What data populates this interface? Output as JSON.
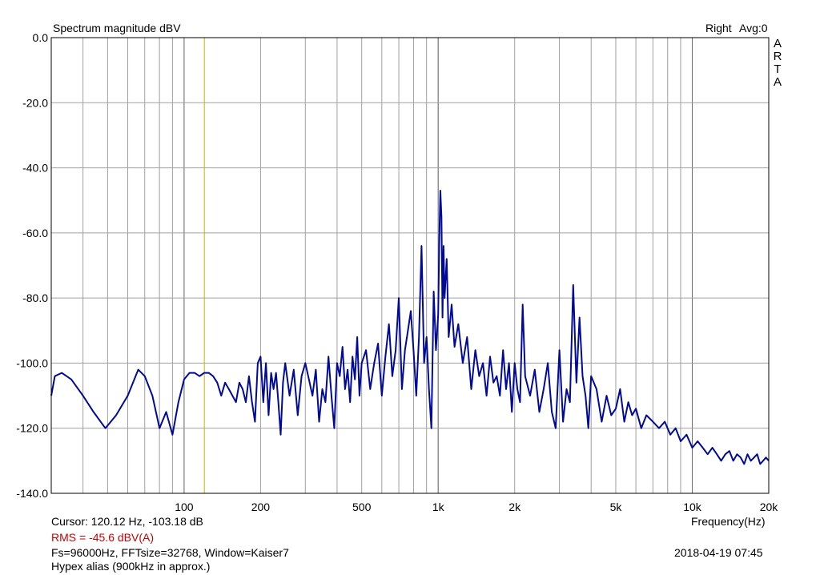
{
  "header": {
    "title": "Spectrum magnitude dBV",
    "channel": "Right",
    "avg": "Avg:0",
    "brand_letters": [
      "A",
      "R",
      "T",
      "A"
    ]
  },
  "footer": {
    "cursor": "Cursor: 120.12 Hz, -103.18 dB",
    "rms": "RMS =  -45.6 dBV(A)",
    "params": "Fs=96000Hz, FFTsize=32768, Window=Kaiser7",
    "note": "Hypex alias (900kHz in approx.)",
    "timestamp": "2018-04-19  07:45",
    "xlabel": "Frequency(Hz)"
  },
  "colors": {
    "trace": "#000a96",
    "cursor_line": "#c8b400",
    "grid": "#a0a0a0",
    "rms_text": "#c80000"
  },
  "chart_data": {
    "type": "line",
    "title": "Spectrum magnitude dBV",
    "xlabel": "Frequency(Hz)",
    "ylabel": "",
    "x_scale": "log",
    "xlim": [
      30,
      20000
    ],
    "ylim": [
      -140,
      0
    ],
    "grid": true,
    "x_ticks": [
      {
        "value": 100,
        "label": "100"
      },
      {
        "value": 200,
        "label": "200"
      },
      {
        "value": 500,
        "label": "500"
      },
      {
        "value": 1000,
        "label": "1k"
      },
      {
        "value": 2000,
        "label": "2k"
      },
      {
        "value": 5000,
        "label": "5k"
      },
      {
        "value": 10000,
        "label": "10k"
      },
      {
        "value": 20000,
        "label": "20k"
      }
    ],
    "y_ticks": [
      {
        "value": 0,
        "label": "0.0"
      },
      {
        "value": -20,
        "label": "-20.0"
      },
      {
        "value": -40,
        "label": "-40.0"
      },
      {
        "value": -60,
        "label": "-60.0"
      },
      {
        "value": -80,
        "label": "-80.0"
      },
      {
        "value": -100,
        "label": "-100.0"
      },
      {
        "value": -120,
        "label": "-120.0"
      },
      {
        "value": -140,
        "label": "-140.0"
      }
    ],
    "cursor": {
      "x": 120.12,
      "y": -103.18
    },
    "series": [
      {
        "x": [
          30,
          31,
          33,
          36,
          40,
          44,
          49,
          54,
          60,
          66,
          70,
          75,
          80,
          85,
          90,
          95,
          100,
          105,
          110,
          115,
          120,
          125,
          130,
          135,
          140,
          145,
          150,
          155,
          160,
          165,
          170,
          175,
          180,
          185,
          190,
          195,
          200,
          205,
          210,
          215,
          220,
          225,
          230,
          235,
          240,
          245,
          250,
          260,
          270,
          280,
          290,
          300,
          310,
          320,
          330,
          340,
          350,
          360,
          370,
          380,
          390,
          400,
          410,
          420,
          430,
          440,
          450,
          460,
          470,
          480,
          490,
          500,
          520,
          540,
          560,
          580,
          600,
          620,
          640,
          660,
          680,
          700,
          720,
          740,
          760,
          780,
          800,
          820,
          840,
          860,
          880,
          900,
          920,
          940,
          960,
          980,
          1000,
          1010,
          1020,
          1030,
          1040,
          1050,
          1060,
          1080,
          1100,
          1130,
          1160,
          1200,
          1250,
          1300,
          1350,
          1400,
          1450,
          1500,
          1550,
          1600,
          1650,
          1700,
          1750,
          1800,
          1850,
          1900,
          1950,
          2000,
          2050,
          2100,
          2150,
          2200,
          2300,
          2400,
          2500,
          2600,
          2700,
          2800,
          2900,
          3000,
          3100,
          3200,
          3300,
          3400,
          3500,
          3600,
          3700,
          3800,
          3900,
          4000,
          4200,
          4400,
          4600,
          4800,
          5000,
          5200,
          5400,
          5600,
          5800,
          6000,
          6300,
          6600,
          7000,
          7400,
          7800,
          8200,
          8600,
          9000,
          9500,
          10000,
          10500,
          11000,
          11500,
          12000,
          12500,
          13000,
          13500,
          14000,
          14500,
          15000,
          15500,
          16000,
          16500,
          17000,
          17500,
          18000,
          18500,
          19000,
          19500,
          20000
        ],
        "y": [
          -110,
          -104,
          -103,
          -105,
          -110,
          -115,
          -120,
          -116,
          -110,
          -102,
          -104,
          -110,
          -120,
          -115,
          -122,
          -112,
          -105,
          -103,
          -103,
          -104,
          -103,
          -103,
          -104,
          -106,
          -110,
          -106,
          -108,
          -110,
          -112,
          -106,
          -108,
          -112,
          -104,
          -112,
          -118,
          -100,
          -98,
          -112,
          -100,
          -116,
          -103,
          -108,
          -103,
          -112,
          -122,
          -106,
          -100,
          -110,
          -102,
          -116,
          -104,
          -100,
          -105,
          -110,
          -102,
          -118,
          -108,
          -112,
          -98,
          -110,
          -120,
          -100,
          -104,
          -95,
          -108,
          -102,
          -112,
          -98,
          -105,
          -92,
          -110,
          -100,
          -96,
          -108,
          -100,
          -94,
          -110,
          -98,
          -88,
          -104,
          -96,
          -80,
          -108,
          -96,
          -90,
          -84,
          -96,
          -110,
          -92,
          -64,
          -100,
          -92,
          -108,
          -120,
          -78,
          -96,
          -85,
          -62,
          -47,
          -55,
          -86,
          -64,
          -80,
          -68,
          -92,
          -82,
          -95,
          -88,
          -100,
          -92,
          -108,
          -96,
          -104,
          -100,
          -110,
          -98,
          -106,
          -104,
          -110,
          -96,
          -108,
          -100,
          -115,
          -100,
          -108,
          -112,
          -82,
          -104,
          -110,
          -102,
          -115,
          -108,
          -100,
          -115,
          -120,
          -96,
          -118,
          -108,
          -112,
          -76,
          -106,
          -86,
          -104,
          -110,
          -120,
          -104,
          -108,
          -118,
          -110,
          -116,
          -114,
          -108,
          -118,
          -112,
          -116,
          -114,
          -120,
          -116,
          -118,
          -120,
          -118,
          -122,
          -120,
          -124,
          -122,
          -126,
          -124,
          -126,
          -128,
          -126,
          -128,
          -130,
          -128,
          -127,
          -130,
          -128,
          -129,
          -131,
          -128,
          -130,
          -129,
          -128,
          -131,
          -130,
          -129,
          -130
        ]
      }
    ]
  }
}
